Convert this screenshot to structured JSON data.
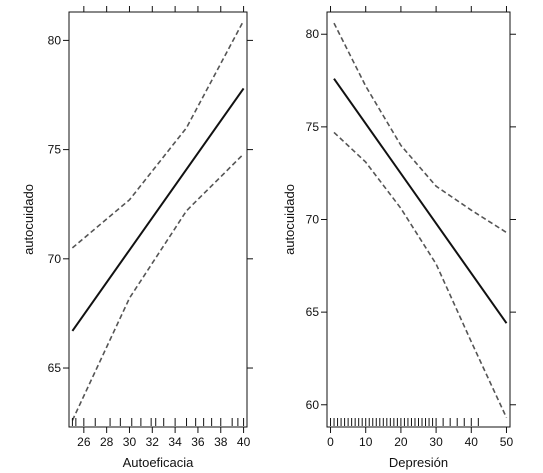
{
  "chart_data": [
    {
      "type": "line",
      "xlabel": "Autoeficacia",
      "ylabel": "autocuidado",
      "xlim": [
        24.7,
        40.3
      ],
      "ylim": [
        62.3,
        81.3
      ],
      "xticks": [
        26,
        28,
        30,
        32,
        34,
        36,
        38,
        40
      ],
      "yticks": [
        65,
        70,
        75,
        80
      ],
      "series": [
        {
          "style": "solid",
          "x": [
            25,
            40
          ],
          "y": [
            66.7,
            77.8
          ]
        },
        {
          "style": "dashed",
          "x": [
            25,
            30,
            35,
            40
          ],
          "y": [
            70.5,
            72.7,
            76.0,
            80.9
          ]
        },
        {
          "style": "dashed",
          "x": [
            25,
            30,
            35,
            40
          ],
          "y": [
            62.6,
            68.2,
            72.2,
            74.8
          ]
        }
      ],
      "rug": [
        25,
        25.3,
        26,
        27,
        28.3,
        29.2,
        30.2,
        31,
        31.9,
        32.3,
        33,
        34,
        35,
        35.8,
        36.5,
        37.2,
        38,
        39,
        39.5,
        40
      ]
    },
    {
      "type": "line",
      "xlabel": "Depresión",
      "ylabel": "autocuidado",
      "xlim": [
        -1,
        51
      ],
      "ylim": [
        58.8,
        81.2
      ],
      "xticks": [
        0,
        10,
        20,
        30,
        40,
        50
      ],
      "yticks": [
        60,
        65,
        70,
        75,
        80
      ],
      "series": [
        {
          "style": "solid",
          "x": [
            1,
            50
          ],
          "y": [
            77.6,
            64.4
          ]
        },
        {
          "style": "dashed",
          "x": [
            1,
            10,
            20,
            30,
            40,
            50
          ],
          "y": [
            80.6,
            77.2,
            74.0,
            71.8,
            70.5,
            69.3
          ]
        },
        {
          "style": "dashed",
          "x": [
            1,
            10,
            20,
            30,
            40,
            50
          ],
          "y": [
            74.7,
            73.1,
            70.6,
            67.6,
            63.4,
            59.3
          ]
        }
      ],
      "rug": [
        0,
        1,
        2,
        3,
        4,
        5,
        6,
        7,
        8,
        9,
        10,
        11,
        12,
        13,
        14,
        15,
        16,
        17,
        18,
        19,
        20,
        21,
        22,
        23,
        24,
        25,
        26,
        27,
        28,
        29,
        30,
        32,
        34,
        36,
        38,
        40,
        42
      ]
    }
  ]
}
